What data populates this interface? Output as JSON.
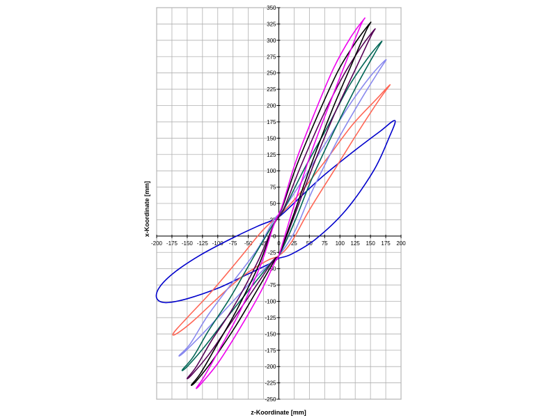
{
  "chart_data": {
    "type": "scatter",
    "xlabel": "z-Koordinate [mm]",
    "ylabel": "x-Koordinate [mm]",
    "xlim": [
      -200,
      200
    ],
    "ylim": [
      -250,
      350
    ],
    "x_ticks": [
      -200,
      -175,
      -150,
      -125,
      -100,
      -75,
      -50,
      -25,
      0,
      25,
      50,
      75,
      100,
      125,
      150,
      175,
      200
    ],
    "y_ticks": [
      -250,
      -225,
      -200,
      -175,
      -150,
      -125,
      -100,
      -75,
      -50,
      -25,
      0,
      25,
      50,
      75,
      100,
      125,
      150,
      175,
      200,
      225,
      250,
      275,
      300,
      325,
      350
    ],
    "grid": true,
    "legend": "none",
    "series": [
      {
        "color": "#0000cc",
        "points": [
          [
            190,
            177
          ],
          [
            165,
            160
          ],
          [
            120,
            128
          ],
          [
            70,
            90
          ],
          [
            30,
            55
          ],
          [
            5,
            33
          ],
          [
            -8,
            25
          ],
          [
            -35,
            15
          ],
          [
            -80,
            -5
          ],
          [
            -130,
            -30
          ],
          [
            -170,
            -55
          ],
          [
            -195,
            -78
          ],
          [
            -200,
            -95
          ],
          [
            -185,
            -102
          ],
          [
            -150,
            -96
          ],
          [
            -100,
            -80
          ],
          [
            -50,
            -58
          ],
          [
            -10,
            -40
          ],
          [
            0,
            -34
          ],
          [
            20,
            -28
          ],
          [
            60,
            -5
          ],
          [
            110,
            40
          ],
          [
            155,
            100
          ],
          [
            180,
            150
          ],
          [
            190,
            177
          ]
        ]
      },
      {
        "color": "#ff6655",
        "points": [
          [
            182,
            232
          ],
          [
            160,
            210
          ],
          [
            120,
            170
          ],
          [
            80,
            120
          ],
          [
            40,
            72
          ],
          [
            10,
            40
          ],
          [
            -5,
            28
          ],
          [
            -30,
            5
          ],
          [
            -65,
            -35
          ],
          [
            -110,
            -85
          ],
          [
            -150,
            -125
          ],
          [
            -172,
            -148
          ],
          [
            -168,
            -150
          ],
          [
            -140,
            -130
          ],
          [
            -100,
            -95
          ],
          [
            -60,
            -62
          ],
          [
            -20,
            -38
          ],
          [
            0,
            -30
          ],
          [
            20,
            -10
          ],
          [
            50,
            40
          ],
          [
            90,
            100
          ],
          [
            130,
            160
          ],
          [
            165,
            210
          ],
          [
            182,
            232
          ]
        ]
      },
      {
        "color": "#8888ee",
        "points": [
          [
            175,
            270
          ],
          [
            150,
            245
          ],
          [
            115,
            200
          ],
          [
            75,
            140
          ],
          [
            35,
            80
          ],
          [
            5,
            38
          ],
          [
            -8,
            25
          ],
          [
            -35,
            -20
          ],
          [
            -75,
            -70
          ],
          [
            -115,
            -120
          ],
          [
            -145,
            -165
          ],
          [
            -163,
            -183
          ],
          [
            -155,
            -178
          ],
          [
            -125,
            -150
          ],
          [
            -85,
            -110
          ],
          [
            -45,
            -70
          ],
          [
            -10,
            -38
          ],
          [
            0,
            -30
          ],
          [
            25,
            5
          ],
          [
            55,
            70
          ],
          [
            95,
            145
          ],
          [
            135,
            210
          ],
          [
            165,
            255
          ],
          [
            175,
            270
          ]
        ]
      },
      {
        "color": "#006655",
        "points": [
          [
            168,
            298
          ],
          [
            145,
            272
          ],
          [
            115,
            230
          ],
          [
            80,
            168
          ],
          [
            40,
            100
          ],
          [
            8,
            40
          ],
          [
            -8,
            20
          ],
          [
            -40,
            -30
          ],
          [
            -80,
            -95
          ],
          [
            -115,
            -145
          ],
          [
            -140,
            -185
          ],
          [
            -158,
            -205
          ],
          [
            -150,
            -200
          ],
          [
            -122,
            -170
          ],
          [
            -85,
            -125
          ],
          [
            -45,
            -78
          ],
          [
            -10,
            -38
          ],
          [
            0,
            -30
          ],
          [
            25,
            20
          ],
          [
            55,
            90
          ],
          [
            95,
            170
          ],
          [
            130,
            235
          ],
          [
            160,
            285
          ],
          [
            168,
            298
          ]
        ]
      },
      {
        "color": "#550055",
        "points": [
          [
            157,
            317
          ],
          [
            135,
            290
          ],
          [
            105,
            245
          ],
          [
            70,
            180
          ],
          [
            35,
            105
          ],
          [
            8,
            42
          ],
          [
            -8,
            18
          ],
          [
            -35,
            -40
          ],
          [
            -75,
            -110
          ],
          [
            -110,
            -160
          ],
          [
            -135,
            -200
          ],
          [
            -150,
            -218
          ],
          [
            -142,
            -212
          ],
          [
            -115,
            -182
          ],
          [
            -80,
            -135
          ],
          [
            -40,
            -80
          ],
          [
            -8,
            -36
          ],
          [
            0,
            -30
          ],
          [
            25,
            30
          ],
          [
            55,
            105
          ],
          [
            90,
            185
          ],
          [
            125,
            255
          ],
          [
            150,
            305
          ],
          [
            157,
            317
          ]
        ]
      },
      {
        "color": "#000000",
        "points": [
          [
            150,
            327
          ],
          [
            128,
            300
          ],
          [
            98,
            255
          ],
          [
            65,
            188
          ],
          [
            30,
            110
          ],
          [
            6,
            45
          ],
          [
            -8,
            18
          ],
          [
            -33,
            -45
          ],
          [
            -70,
            -115
          ],
          [
            -102,
            -168
          ],
          [
            -128,
            -210
          ],
          [
            -143,
            -228
          ],
          [
            -135,
            -222
          ],
          [
            -108,
            -190
          ],
          [
            -72,
            -140
          ],
          [
            -35,
            -82
          ],
          [
            -6,
            -36
          ],
          [
            0,
            -30
          ],
          [
            25,
            35
          ],
          [
            55,
            115
          ],
          [
            88,
            195
          ],
          [
            120,
            265
          ],
          [
            143,
            315
          ],
          [
            150,
            327
          ]
        ]
      },
      {
        "color": "#ee00ee",
        "points": [
          [
            140,
            333
          ],
          [
            118,
            305
          ],
          [
            90,
            258
          ],
          [
            60,
            192
          ],
          [
            28,
            115
          ],
          [
            5,
            45
          ],
          [
            -8,
            18
          ],
          [
            -30,
            -45
          ],
          [
            -65,
            -118
          ],
          [
            -98,
            -175
          ],
          [
            -122,
            -215
          ],
          [
            -135,
            -233
          ],
          [
            -127,
            -226
          ],
          [
            -100,
            -195
          ],
          [
            -66,
            -145
          ],
          [
            -30,
            -86
          ],
          [
            -5,
            -37
          ],
          [
            0,
            -30
          ],
          [
            22,
            38
          ],
          [
            50,
            120
          ],
          [
            82,
            200
          ],
          [
            112,
            272
          ],
          [
            134,
            323
          ],
          [
            140,
            333
          ]
        ]
      }
    ]
  }
}
